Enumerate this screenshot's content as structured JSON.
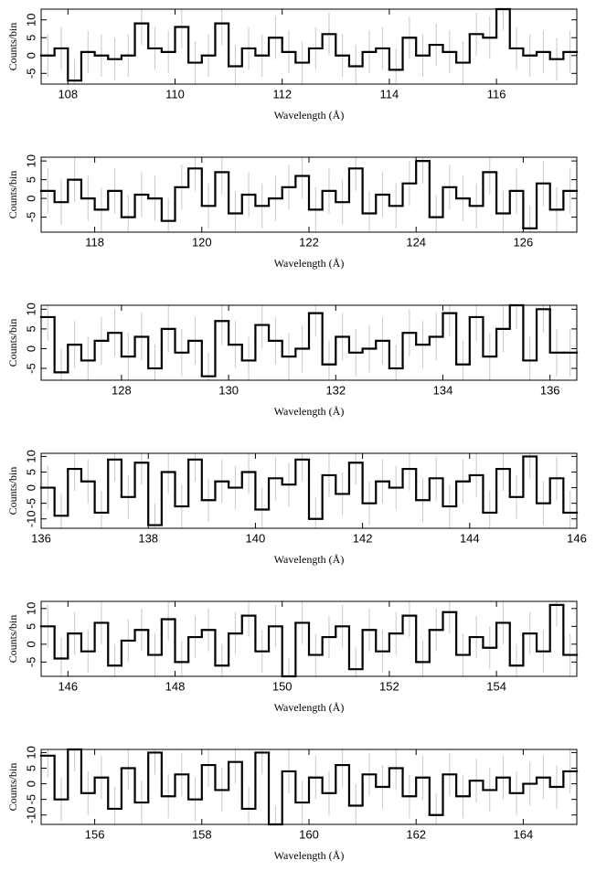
{
  "chart_data": [
    {
      "type": "histogram",
      "x_label": "Wavelength (Å)",
      "y_label": "Counts/bin",
      "bins": [
        107.5,
        107.75,
        108,
        108.25,
        108.5,
        108.75,
        109,
        109.25,
        109.5,
        109.75,
        110,
        110.25,
        110.5,
        110.75,
        111,
        111.25,
        111.5,
        111.75,
        112,
        112.25,
        112.5,
        112.75,
        113,
        113.25,
        113.5,
        113.75,
        114,
        114.25,
        114.5,
        114.75,
        115,
        115.25,
        115.5,
        115.75,
        116,
        116.25,
        116.5,
        116.75,
        117,
        117.25,
        117.5
      ],
      "values": [
        0,
        2,
        -7,
        1,
        0,
        -1,
        0,
        9,
        2,
        1,
        8,
        -2,
        0,
        9,
        -3,
        2,
        0,
        5,
        1,
        -2,
        2,
        6,
        0,
        -3,
        1,
        2,
        -4,
        5,
        0,
        3,
        1,
        -2,
        6,
        5,
        13,
        2,
        0,
        1,
        -1,
        1
      ],
      "error": 6,
      "xlim": [
        107.5,
        117.5
      ],
      "xticks": [
        108,
        110,
        112,
        114,
        116
      ],
      "ylim": [
        -8,
        13
      ],
      "yticks": [
        -5,
        0,
        5,
        10
      ]
    },
    {
      "type": "histogram",
      "x_label": "Wavelength (Å)",
      "y_label": "Counts/bin",
      "bins": [
        117,
        117.25,
        117.5,
        117.75,
        118,
        118.25,
        118.5,
        118.75,
        119,
        119.25,
        119.5,
        119.75,
        120,
        120.25,
        120.5,
        120.75,
        121,
        121.25,
        121.5,
        121.75,
        122,
        122.25,
        122.5,
        122.75,
        123,
        123.25,
        123.5,
        123.75,
        124,
        124.25,
        124.5,
        124.75,
        125,
        125.25,
        125.5,
        125.75,
        126,
        126.25,
        126.5,
        126.75,
        127
      ],
      "values": [
        2,
        -1,
        5,
        0,
        -3,
        2,
        -5,
        1,
        0,
        -6,
        3,
        8,
        -2,
        7,
        -4,
        1,
        -2,
        0,
        3,
        6,
        -3,
        2,
        -1,
        8,
        -4,
        1,
        -2,
        4,
        10,
        -5,
        3,
        0,
        -2,
        7,
        -4,
        2,
        -8,
        4,
        -3,
        2
      ],
      "error": 6,
      "xlim": [
        117,
        127
      ],
      "xticks": [
        118,
        120,
        122,
        124,
        126
      ],
      "ylim": [
        -9,
        11
      ],
      "yticks": [
        -5,
        0,
        5,
        10
      ]
    },
    {
      "type": "histogram",
      "x_label": "Wavelength (Å)",
      "y_label": "Counts/bin",
      "bins": [
        126.5,
        126.75,
        127,
        127.25,
        127.5,
        127.75,
        128,
        128.25,
        128.5,
        128.75,
        129,
        129.25,
        129.5,
        129.75,
        130,
        130.25,
        130.5,
        130.75,
        131,
        131.25,
        131.5,
        131.75,
        132,
        132.25,
        132.5,
        132.75,
        133,
        133.25,
        133.5,
        133.75,
        134,
        134.25,
        134.5,
        134.75,
        135,
        135.25,
        135.5,
        135.75,
        136,
        136.25,
        136.5
      ],
      "values": [
        8,
        -6,
        1,
        -3,
        2,
        4,
        -2,
        3,
        -5,
        5,
        -1,
        2,
        -7,
        7,
        1,
        -3,
        6,
        2,
        -2,
        0,
        9,
        -4,
        3,
        -1,
        0,
        2,
        -5,
        4,
        1,
        3,
        9,
        -4,
        8,
        -2,
        5,
        11,
        -3,
        10,
        -1,
        -1
      ],
      "error": 6,
      "xlim": [
        126.5,
        136.5
      ],
      "xticks": [
        128,
        130,
        132,
        134,
        136
      ],
      "ylim": [
        -8,
        11
      ],
      "yticks": [
        -5,
        0,
        5,
        10
      ]
    },
    {
      "type": "histogram",
      "x_label": "Wavelength (Å)",
      "y_label": "Counts/bin",
      "bins": [
        136,
        136.25,
        136.5,
        136.75,
        137,
        137.25,
        137.5,
        137.75,
        138,
        138.25,
        138.5,
        138.75,
        139,
        139.25,
        139.5,
        139.75,
        140,
        140.25,
        140.5,
        140.75,
        141,
        141.25,
        141.5,
        141.75,
        142,
        142.25,
        142.5,
        142.75,
        143,
        143.25,
        143.5,
        143.75,
        144,
        144.25,
        144.5,
        144.75,
        145,
        145.25,
        145.5,
        145.75,
        146
      ],
      "values": [
        0,
        -9,
        6,
        2,
        -8,
        9,
        -3,
        8,
        -12,
        5,
        -6,
        9,
        -4,
        2,
        0,
        5,
        -7,
        3,
        1,
        9,
        -10,
        4,
        -2,
        8,
        -5,
        2,
        0,
        6,
        -4,
        3,
        -6,
        2,
        4,
        -8,
        6,
        -3,
        10,
        -5,
        3,
        -8
      ],
      "error": 7,
      "xlim": [
        136,
        146
      ],
      "xticks": [
        136,
        138,
        140,
        142,
        144,
        146
      ],
      "ylim": [
        -13,
        11
      ],
      "yticks": [
        -10,
        -5,
        0,
        5,
        10
      ]
    },
    {
      "type": "histogram",
      "x_label": "Wavelength (Å)",
      "y_label": "Counts/bin",
      "bins": [
        145.5,
        145.75,
        146,
        146.25,
        146.5,
        146.75,
        147,
        147.25,
        147.5,
        147.75,
        148,
        148.25,
        148.5,
        148.75,
        149,
        149.25,
        149.5,
        149.75,
        150,
        150.25,
        150.5,
        150.75,
        151,
        151.25,
        151.5,
        151.75,
        152,
        152.25,
        152.5,
        152.75,
        153,
        153.25,
        153.5,
        153.75,
        154,
        154.25,
        154.5,
        154.75,
        155,
        155.25,
        155.5
      ],
      "values": [
        5,
        -4,
        3,
        -2,
        6,
        -6,
        1,
        4,
        -3,
        7,
        -5,
        2,
        4,
        -6,
        3,
        8,
        -2,
        5,
        -10,
        6,
        -3,
        2,
        5,
        -7,
        4,
        -2,
        3,
        8,
        -5,
        4,
        9,
        -3,
        2,
        -1,
        6,
        -6,
        3,
        -2,
        11,
        -3
      ],
      "error": 6,
      "xlim": [
        145.5,
        155.5
      ],
      "xticks": [
        146,
        148,
        150,
        152,
        154
      ],
      "ylim": [
        -9,
        12
      ],
      "yticks": [
        -5,
        0,
        5,
        10
      ]
    },
    {
      "type": "histogram",
      "x_label": "Wavelength (Å)",
      "y_label": "Counts/bin",
      "bins": [
        155,
        155.25,
        155.5,
        155.75,
        156,
        156.25,
        156.5,
        156.75,
        157,
        157.25,
        157.5,
        157.75,
        158,
        158.25,
        158.5,
        158.75,
        159,
        159.25,
        159.5,
        159.75,
        160,
        160.25,
        160.5,
        160.75,
        161,
        161.25,
        161.5,
        161.75,
        162,
        162.25,
        162.5,
        162.75,
        163,
        163.25,
        163.5,
        163.75,
        164,
        164.25,
        164.5,
        164.75,
        165
      ],
      "values": [
        9,
        -5,
        11,
        -3,
        2,
        -8,
        5,
        -6,
        10,
        -4,
        3,
        -5,
        6,
        -2,
        7,
        -8,
        10,
        -14,
        4,
        -6,
        2,
        -3,
        6,
        -7,
        3,
        -1,
        5,
        -4,
        2,
        -10,
        3,
        -4,
        1,
        -2,
        2,
        -3,
        0,
        2,
        -1,
        4
      ],
      "error": 7,
      "xlim": [
        155,
        165
      ],
      "xticks": [
        156,
        158,
        160,
        162,
        164
      ],
      "ylim": [
        -13,
        11
      ],
      "yticks": [
        -10,
        -5,
        0,
        5,
        10
      ]
    }
  ]
}
